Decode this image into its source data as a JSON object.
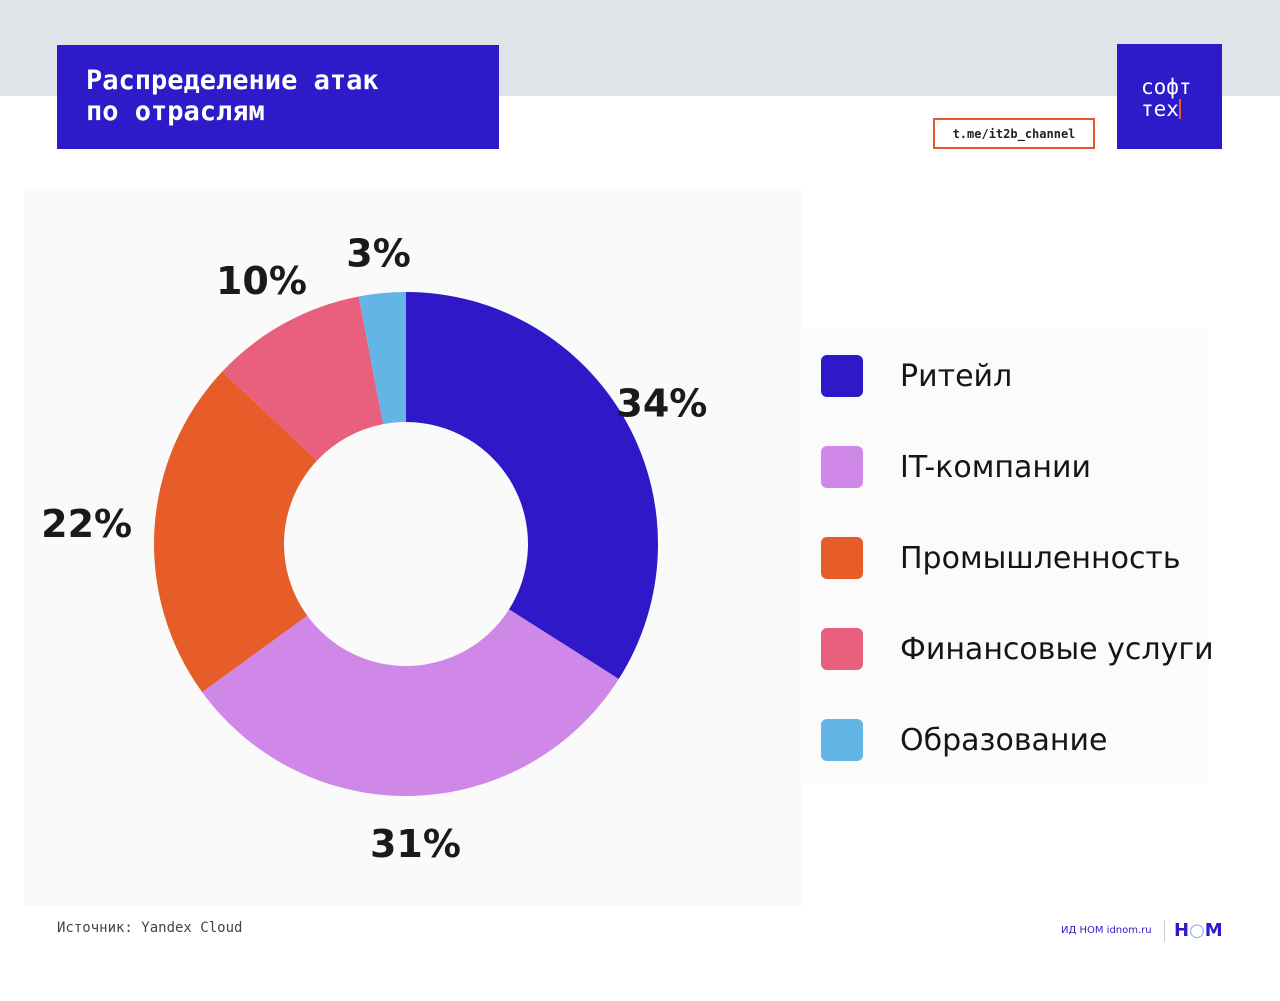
{
  "header": {
    "title": "Распределение атак\nпо отраслям",
    "channel_link": "t.me/it2b_channel",
    "logo_text": [
      "софт",
      "тех"
    ]
  },
  "chart_data": {
    "type": "pie",
    "donut": true,
    "categories": [
      "Ритейл",
      "IT-компании",
      "Промышленность",
      "Финансовые услуги",
      "Образование"
    ],
    "values": [
      34,
      31,
      22,
      10,
      3
    ],
    "labels": [
      "34%",
      "31%",
      "22%",
      "10%",
      "3%"
    ],
    "colors": [
      "#2e18c8",
      "#d088e8",
      "#e65d2a",
      "#e9607f",
      "#63b5e5"
    ],
    "legend_position": "right"
  },
  "footer": {
    "source": "Источник: Yandex Cloud",
    "publisher": "ИД НОМ idnom.ru",
    "publisher_logo": "НОМ"
  }
}
